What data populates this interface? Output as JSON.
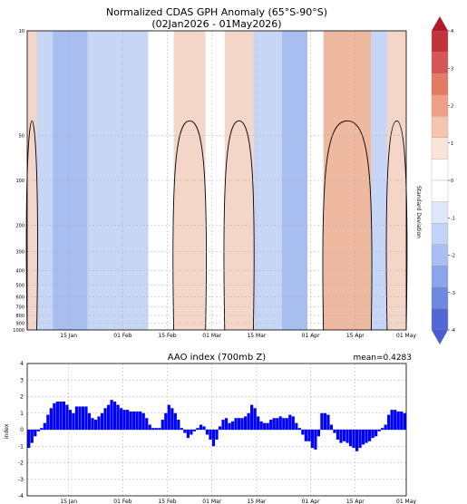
{
  "chart_data": [
    {
      "type": "heatmap",
      "title": "Normalized CDAS GPH Anomaly (65°S-90°S)",
      "subtitle": "(02Jan2026 - 01May2026)",
      "x_ticks": [
        "15 Jan",
        "01 Feb",
        "15 Feb",
        "01 Mar",
        "15 Mar",
        "01 Apr",
        "15 Apr",
        "01 May"
      ],
      "x_tick_days": [
        13,
        30,
        44,
        58,
        72,
        89,
        103,
        119
      ],
      "x_range_days": [
        0,
        119
      ],
      "y_ticks": [
        "10",
        "50",
        "100",
        "200",
        "300",
        "400",
        "500",
        "600",
        "700",
        "800",
        "900",
        "1000"
      ],
      "y_tick_values": [
        10,
        50,
        100,
        200,
        300,
        400,
        500,
        600,
        700,
        800,
        900,
        1000
      ],
      "y_range": [
        10,
        1000
      ],
      "y_scale": "log",
      "colorbar": {
        "label": "Standard Deviation",
        "ticks": [
          "4",
          "3",
          "2",
          "1",
          "0",
          "-1",
          "-2",
          "-3",
          "-4"
        ],
        "values": [
          4,
          3,
          2,
          1,
          0,
          -1,
          -2,
          -3,
          -4
        ],
        "colors": [
          "#c1343e",
          "#d65555",
          "#e37a63",
          "#ee9f84",
          "#f6c3ad",
          "#fae3d8",
          "#ffffff",
          "#ffffff",
          "#dfe7fb",
          "#c3d3f7",
          "#a9bff1",
          "#8aa5ea",
          "#6e89e0",
          "#5467d6"
        ]
      },
      "anomaly_bands": [
        {
          "start": 0,
          "end": 3,
          "sign": "positive",
          "level": 1
        },
        {
          "start": 3,
          "end": 8,
          "sign": "negative",
          "level": 1
        },
        {
          "start": 8,
          "end": 19,
          "sign": "negative",
          "level": 2
        },
        {
          "start": 19,
          "end": 38,
          "sign": "negative",
          "level": 1
        },
        {
          "start": 38,
          "end": 46,
          "sign": "neutral",
          "level": 0
        },
        {
          "start": 46,
          "end": 56,
          "sign": "positive",
          "level": 1
        },
        {
          "start": 56,
          "end": 62,
          "sign": "neutral",
          "level": 0
        },
        {
          "start": 62,
          "end": 71,
          "sign": "positive",
          "level": 1
        },
        {
          "start": 71,
          "end": 80,
          "sign": "negative",
          "level": 1
        },
        {
          "start": 80,
          "end": 88,
          "sign": "negative",
          "level": 2
        },
        {
          "start": 88,
          "end": 93,
          "sign": "neutral",
          "level": 0
        },
        {
          "start": 93,
          "end": 108,
          "sign": "positive",
          "level": 2
        },
        {
          "start": 108,
          "end": 113,
          "sign": "negative",
          "level": 1
        },
        {
          "start": 113,
          "end": 119,
          "sign": "positive",
          "level": 1
        }
      ]
    },
    {
      "type": "bar",
      "title": "AAO index (700mb Z)",
      "annotation": "mean=0.4283",
      "ylabel": "index",
      "ylim": [
        -4,
        4
      ],
      "y_ticks": [
        "4",
        "3",
        "2",
        "1",
        "0",
        "-1",
        "-2",
        "-3",
        "-4"
      ],
      "x_ticks": [
        "15 Jan",
        "01 Feb",
        "15 Feb",
        "01 Mar",
        "15 Mar",
        "01 Apr",
        "15 Apr",
        "01 May"
      ],
      "x_tick_days": [
        13,
        30,
        44,
        58,
        72,
        89,
        103,
        119
      ],
      "x_range_days": [
        0,
        119
      ],
      "bar_color": "#0000ff",
      "values": [
        -1.1,
        -0.8,
        -0.4,
        -0.1,
        0.1,
        0.4,
        0.9,
        1.3,
        1.6,
        1.7,
        1.7,
        1.7,
        1.5,
        1.2,
        1.0,
        1.4,
        1.4,
        1.4,
        1.4,
        1.0,
        0.7,
        0.6,
        0.8,
        1.0,
        1.3,
        1.5,
        1.8,
        1.7,
        1.5,
        1.3,
        1.2,
        1.2,
        1.1,
        1.1,
        1.1,
        1.1,
        1.0,
        0.7,
        0.3,
        0.1,
        0.1,
        0.1,
        0.6,
        1.0,
        1.5,
        1.3,
        1.0,
        0.6,
        0.1,
        -0.2,
        -0.5,
        -0.3,
        -0.1,
        0.1,
        0.3,
        0.2,
        -0.3,
        -0.6,
        -1.0,
        -0.6,
        0.2,
        0.6,
        0.7,
        0.4,
        0.5,
        0.7,
        0.7,
        0.7,
        0.8,
        1.0,
        1.5,
        1.3,
        0.8,
        0.5,
        0.4,
        0.4,
        0.6,
        0.7,
        0.7,
        0.8,
        0.7,
        0.7,
        0.9,
        0.8,
        0.4,
        0.1,
        -0.3,
        -0.7,
        -0.7,
        -1.1,
        -1.2,
        -0.4,
        1.0,
        1.0,
        0.9,
        0.3,
        -0.2,
        -0.6,
        -0.8,
        -0.7,
        -0.8,
        -1.0,
        -1.1,
        -1.3,
        -1.1,
        -0.9,
        -0.8,
        -0.7,
        -0.5,
        -0.4,
        -0.1,
        0.1,
        0.3,
        0.9,
        1.2,
        1.2,
        1.1,
        1.1,
        1.0
      ]
    }
  ]
}
